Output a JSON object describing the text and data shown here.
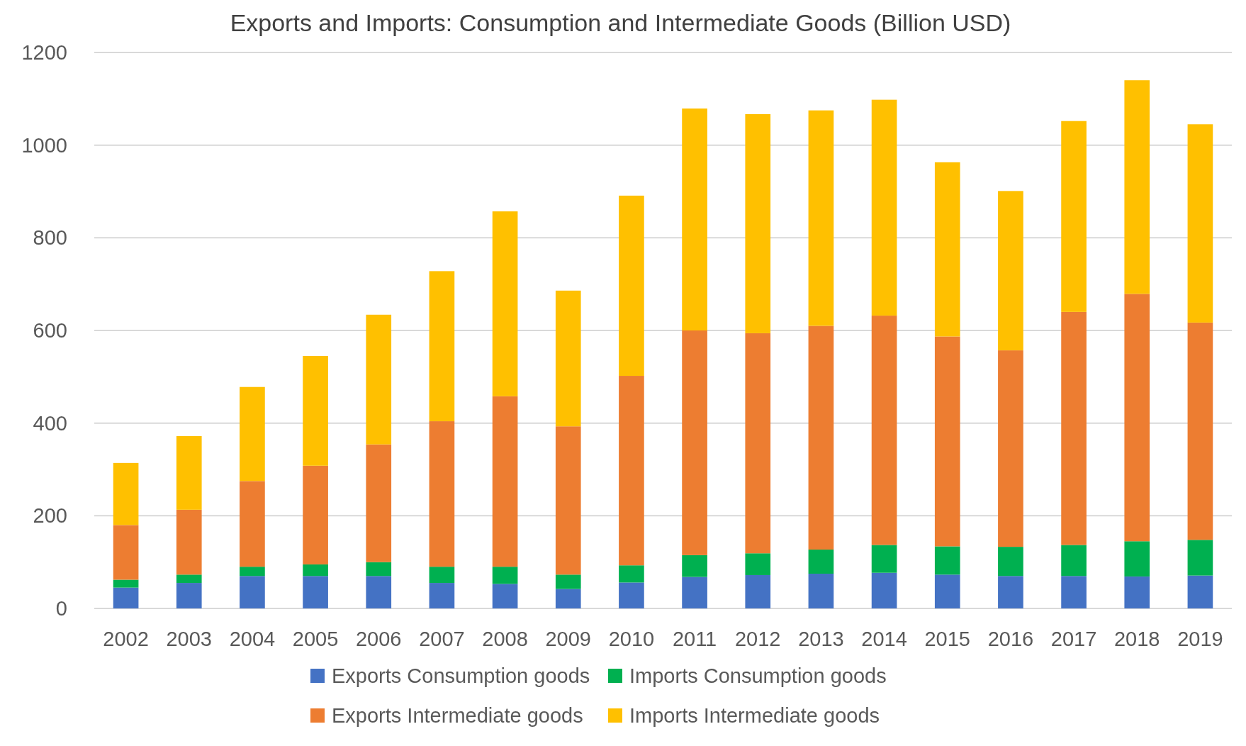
{
  "chart_data": {
    "type": "bar",
    "title": "Exports and Imports: Consumption and Intermediate Goods (Billion USD)",
    "stacked": true,
    "categories": [
      "2002",
      "2003",
      "2004",
      "2005",
      "2006",
      "2007",
      "2008",
      "2009",
      "2010",
      "2011",
      "2012",
      "2013",
      "2014",
      "2015",
      "2016",
      "2017",
      "2018",
      "2019"
    ],
    "series": [
      {
        "name": "Exports Consumption goods",
        "color": "#4472c4",
        "values": [
          45,
          55,
          70,
          70,
          70,
          55,
          53,
          42,
          56,
          68,
          72,
          75,
          77,
          73,
          70,
          70,
          69,
          71
        ]
      },
      {
        "name": "Imports Consumption goods",
        "color": "#00b050",
        "values": [
          17,
          18,
          20,
          25,
          30,
          35,
          37,
          31,
          37,
          47,
          47,
          52,
          60,
          61,
          63,
          67,
          76,
          77
        ]
      },
      {
        "name": "Exports Intermediate goods",
        "color": "#ed7d31",
        "values": [
          118,
          140,
          185,
          213,
          254,
          314,
          368,
          320,
          409,
          485,
          475,
          483,
          495,
          453,
          424,
          503,
          534,
          469
        ]
      },
      {
        "name": "Imports Intermediate goods",
        "color": "#ffc000",
        "values": [
          134,
          159,
          203,
          237,
          280,
          324,
          399,
          293,
          389,
          479,
          473,
          465,
          466,
          376,
          344,
          412,
          461,
          428
        ]
      }
    ],
    "ylim": [
      0,
      1200
    ],
    "yticks": [
      0,
      200,
      400,
      600,
      800,
      1000,
      1200
    ],
    "grid": "y",
    "legend": "bottom"
  }
}
